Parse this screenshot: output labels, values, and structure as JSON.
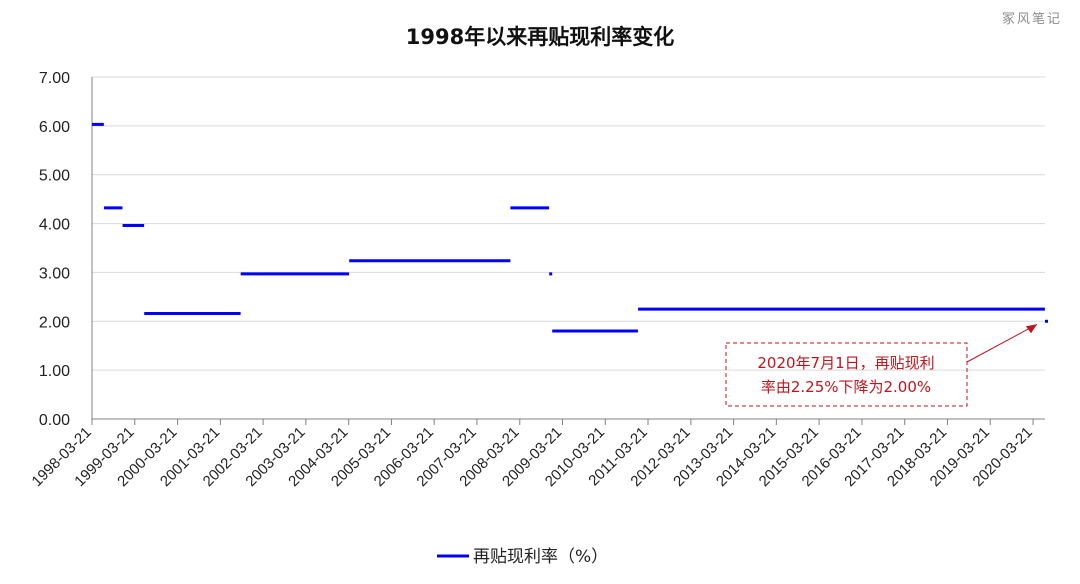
{
  "watermark": "冢风笔记",
  "chart_data": {
    "type": "line",
    "title": "1998年以来再贴现利率变化",
    "xlabel": "",
    "ylabel": "",
    "ylim": [
      0,
      7
    ],
    "y_ticks": [
      "0.00",
      "1.00",
      "2.00",
      "3.00",
      "4.00",
      "5.00",
      "6.00",
      "7.00"
    ],
    "x_ticks": [
      "1998-03-21",
      "1999-03-21",
      "2000-03-21",
      "2001-03-21",
      "2002-03-21",
      "2003-03-21",
      "2004-03-21",
      "2005-03-21",
      "2006-03-21",
      "2007-03-21",
      "2008-03-21",
      "2009-03-21",
      "2010-03-21",
      "2011-03-21",
      "2012-03-21",
      "2013-03-21",
      "2014-03-21",
      "2015-03-21",
      "2016-03-21",
      "2017-03-21",
      "2018-03-21",
      "2019-03-21",
      "2020-03-21"
    ],
    "x_range": [
      "1998-03-21",
      "2020-07-01"
    ],
    "grid": true,
    "legend_position": "bottom",
    "series": [
      {
        "name": "再贴现利率（%）",
        "color": "#0000ff",
        "segments": [
          {
            "start": "1998-03-21",
            "end": "1998-06-30",
            "value": 6.03
          },
          {
            "start": "1998-07-01",
            "end": "1998-12-06",
            "value": 4.32
          },
          {
            "start": "1998-12-07",
            "end": "1999-06-09",
            "value": 3.96
          },
          {
            "start": "1999-06-10",
            "end": "2001-09-10",
            "value": 2.16
          },
          {
            "start": "2001-09-11",
            "end": "2004-03-24",
            "value": 2.97
          },
          {
            "start": "2004-03-25",
            "end": "2008-01-01",
            "value": 3.24
          },
          {
            "start": "2008-01-01",
            "end": "2008-11-26",
            "value": 4.32
          },
          {
            "start": "2008-11-27",
            "end": "2008-12-22",
            "value": 2.97
          },
          {
            "start": "2008-12-23",
            "end": "2010-12-25",
            "value": 1.8
          },
          {
            "start": "2010-12-26",
            "end": "2020-06-30",
            "value": 2.25
          },
          {
            "start": "2020-07-01",
            "end": "2020-07-01",
            "value": 2.0
          }
        ]
      }
    ],
    "annotation": {
      "lines": [
        "2020年7月1日，再贴现利",
        "率由2.25%下降为2.00%"
      ],
      "color": "#c0141c"
    }
  }
}
